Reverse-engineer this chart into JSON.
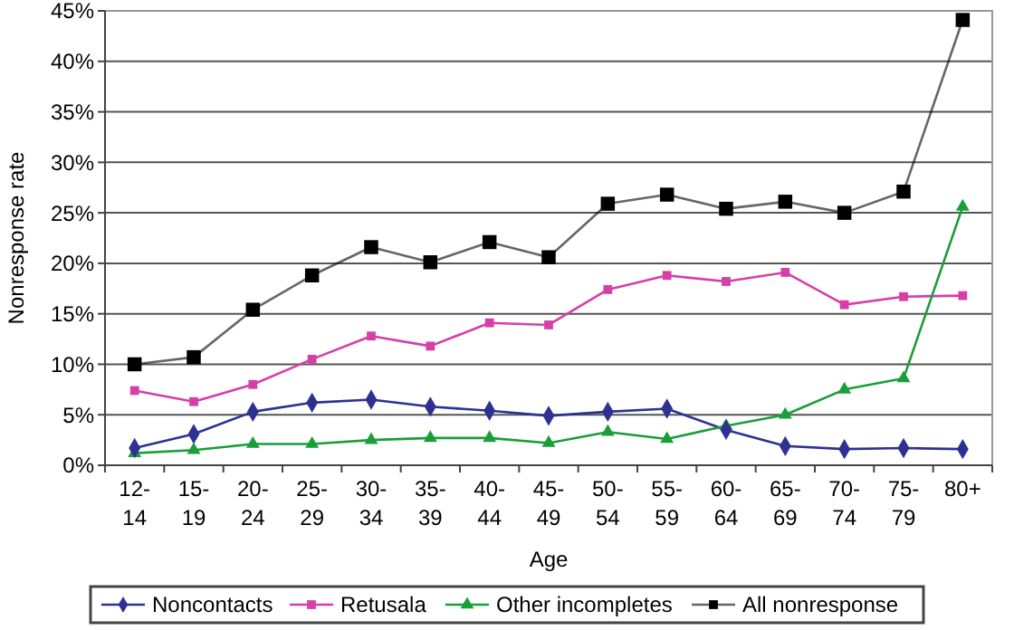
{
  "chart_data": {
    "type": "line",
    "xlabel": "Age",
    "ylabel": "Nonresponse rate",
    "categories": [
      "12-14",
      "15-19",
      "20-24",
      "25-29",
      "30-34",
      "35-39",
      "40-44",
      "45-49",
      "50-54",
      "55-59",
      "60-64",
      "65-69",
      "70-74",
      "75-79",
      "80+"
    ],
    "series": [
      {
        "name": "Noncontacts",
        "color": "#2e3192",
        "marker": "diamond",
        "values": [
          1.7,
          3.1,
          5.3,
          6.2,
          6.5,
          5.8,
          5.4,
          4.9,
          5.3,
          5.6,
          3.5,
          1.9,
          1.6,
          1.7,
          1.6
        ]
      },
      {
        "name": "Retusala",
        "color": "#d63fa8",
        "marker": "square",
        "values": [
          7.4,
          6.3,
          8.0,
          10.5,
          12.8,
          11.8,
          14.1,
          13.9,
          17.4,
          18.8,
          18.2,
          19.1,
          15.9,
          16.7,
          16.8
        ]
      },
      {
        "name": "Other incompletes",
        "color": "#1a9e3a",
        "marker": "triangle",
        "values": [
          1.2,
          1.5,
          2.1,
          2.1,
          2.5,
          2.7,
          2.7,
          2.2,
          3.3,
          2.6,
          3.9,
          5.0,
          7.5,
          8.6,
          25.6
        ]
      },
      {
        "name": "All nonresponse",
        "color": "#000000",
        "marker": "square",
        "values": [
          10.0,
          10.7,
          15.4,
          18.8,
          21.6,
          20.1,
          22.1,
          20.6,
          25.9,
          26.8,
          25.4,
          26.1,
          25.0,
          27.1,
          44.1
        ]
      }
    ],
    "ylim": [
      0,
      45
    ],
    "yticks": [
      {
        "value": 0,
        "label": "0%"
      },
      {
        "value": 5,
        "label": "5%"
      },
      {
        "value": 10,
        "label": "10%"
      },
      {
        "value": 15,
        "label": "15%"
      },
      {
        "value": 20,
        "label": "20%"
      },
      {
        "value": 25,
        "label": "25%"
      },
      {
        "value": 30,
        "label": "30%"
      },
      {
        "value": 35,
        "label": "35%"
      },
      {
        "value": 40,
        "label": "40%"
      },
      {
        "value": 45,
        "label": "45%"
      }
    ],
    "grid": "y",
    "legend": "bottom",
    "line_style": "solid"
  }
}
